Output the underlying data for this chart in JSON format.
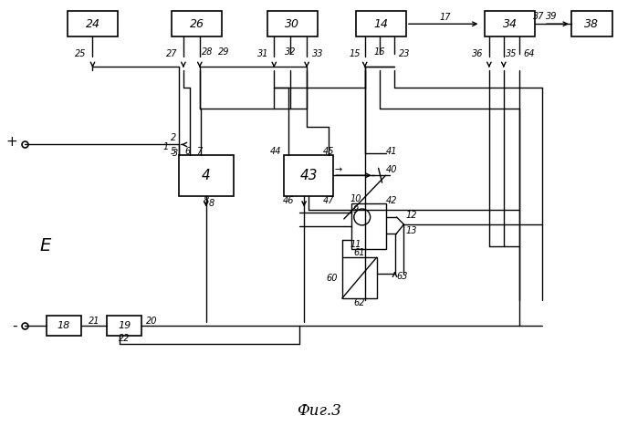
{
  "bg_color": "#ffffff",
  "line_color": "#000000",
  "box_color": "#ffffff",
  "box_edge": "#000000",
  "title": "Фиг.3",
  "fig_width": 6.99,
  "fig_height": 4.67,
  "dpi": 100
}
